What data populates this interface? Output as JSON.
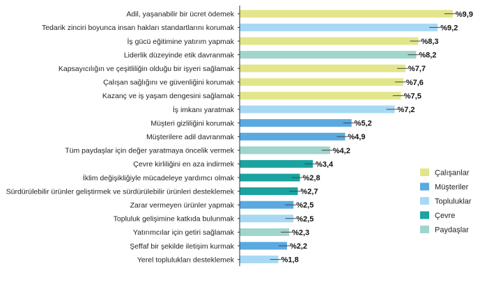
{
  "chart_data": {
    "type": "bar",
    "orientation": "horizontal",
    "title": "",
    "xlabel": "",
    "ylabel": "",
    "xlim": [
      0,
      10
    ],
    "grid": false,
    "legend_position": "right",
    "value_prefix": "%",
    "decimal_separator": ",",
    "legend": [
      {
        "name": "Çalışanlar",
        "color": "#e2e68a"
      },
      {
        "name": "Müşteriler",
        "color": "#5aa9e0"
      },
      {
        "name": "Topluluklar",
        "color": "#a7d9f4"
      },
      {
        "name": "Çevre",
        "color": "#1aa39f"
      },
      {
        "name": "Paydaşlar",
        "color": "#9fd5cb"
      }
    ],
    "categories": [
      "Adil, yaşanabilir bir ücret ödemek",
      "Tedarik zinciri boyunca insan hakları standartlarını korumak",
      "İş gücü eğitimine yatırım yapmak",
      "Liderlik düzeyinde etik davranmak",
      "Kapsayıcılığın ve çeşitliliğin olduğu bir işyeri sağlamak",
      "Çalışan sağlığını ve güvenliğini korumak",
      "Kazanç ve iş yaşam dengesini sağlamak",
      "İş imkanı yaratmak",
      "Müşteri gizliliğini korumak",
      "Müşterilere adil davranmak",
      "Tüm paydaşlar için değer yaratmaya öncelik vermek",
      "Çevre kirliliğini en aza indirmek",
      "İklim değişikliğiyle mücadeleye yardımcı olmak",
      "Sürdürülebilir ürünler geliştirmek ve sürdürülebilir ürünleri desteklemek",
      "Zarar vermeyen ürünler yapmak",
      "Topluluk gelişimine katkıda bulunmak",
      "Yatırımcılar için getiri sağlamak",
      "Şeffaf bir şekilde iletişim kurmak",
      "Yerel toplulukları desteklemek"
    ],
    "values": [
      9.9,
      9.2,
      8.3,
      8.2,
      7.7,
      7.6,
      7.5,
      7.2,
      5.2,
      4.9,
      4.2,
      3.4,
      2.8,
      2.7,
      2.5,
      2.5,
      2.3,
      2.2,
      1.8
    ],
    "value_labels": [
      "%9,9",
      "%9,2",
      "%8,3",
      "%8,2",
      "%7,7",
      "%7,6",
      "%7,5",
      "%7,2",
      "%5,2",
      "%4,9",
      "%4,2",
      "%3,4",
      "%2,8",
      "%2,7",
      "%2,5",
      "%2,5",
      "%2,3",
      "%2,2",
      "%1,8"
    ],
    "groups": [
      "Çalışanlar",
      "Topluluklar",
      "Çalışanlar",
      "Paydaşlar",
      "Çalışanlar",
      "Çalışanlar",
      "Çalışanlar",
      "Topluluklar",
      "Müşteriler",
      "Müşteriler",
      "Paydaşlar",
      "Çevre",
      "Çevre",
      "Çevre",
      "Müşteriler",
      "Topluluklar",
      "Paydaşlar",
      "Müşteriler",
      "Topluluklar"
    ]
  }
}
